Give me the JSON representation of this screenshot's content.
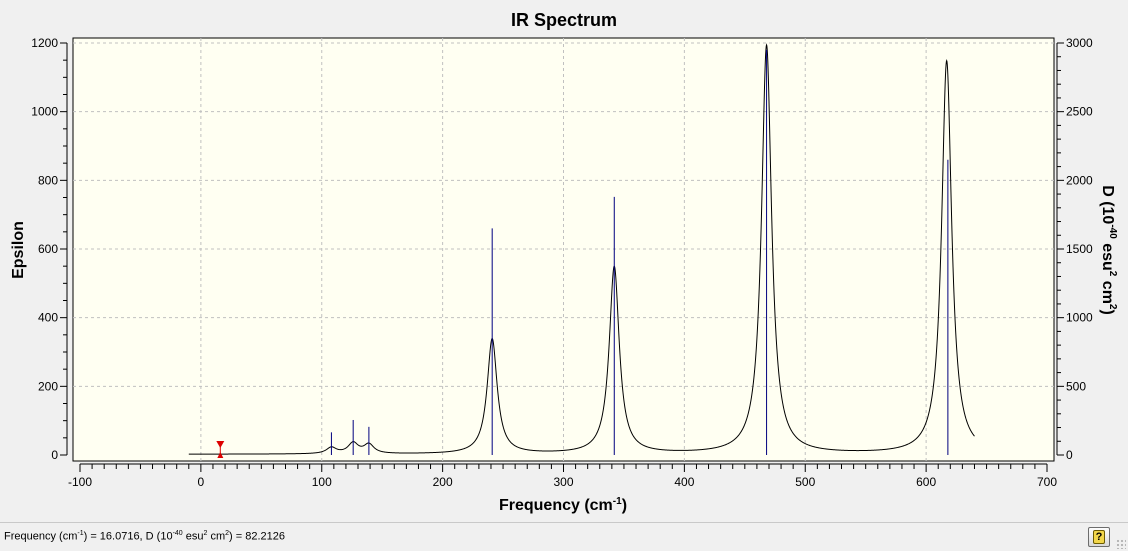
{
  "chart_data": {
    "type": "line",
    "title": "IR Spectrum",
    "xlabel": "Frequency (cm",
    "xlabel_sup": "-1",
    "xlabel_tail": ")",
    "ylabel": "Epsilon",
    "y2label_parts": [
      "D (10",
      "-40",
      " esu",
      "2",
      " cm",
      "2",
      ")"
    ],
    "xlim": [
      -100,
      700
    ],
    "ylim": [
      0,
      1200
    ],
    "y2lim": [
      0,
      3000
    ],
    "grid": true,
    "x_ticks": [
      -100,
      0,
      100,
      200,
      300,
      400,
      500,
      600,
      700
    ],
    "y_ticks": [
      0,
      200,
      400,
      600,
      800,
      1000,
      1200
    ],
    "y2_ticks": [
      0,
      500,
      1000,
      1500,
      2000,
      2500,
      3000
    ],
    "curve_range": [
      -10,
      640
    ],
    "curve_offset_epsilon": 2,
    "peaks": [
      {
        "freq": 108,
        "epsilon": 18,
        "hwhm": 5
      },
      {
        "freq": 126,
        "epsilon": 31,
        "hwhm": 5
      },
      {
        "freq": 139,
        "epsilon": 27,
        "hwhm": 5
      },
      {
        "freq": 241,
        "epsilon": 335,
        "hwhm": 5
      },
      {
        "freq": 342,
        "epsilon": 545,
        "hwhm": 5
      },
      {
        "freq": 468,
        "epsilon": 1190,
        "hwhm": 5
      },
      {
        "freq": 617,
        "epsilon": 1145,
        "hwhm": 5
      }
    ],
    "sticks": [
      {
        "freq": 108,
        "d": 165
      },
      {
        "freq": 126,
        "d": 255
      },
      {
        "freq": 139,
        "d": 205
      },
      {
        "freq": 241,
        "d": 1650
      },
      {
        "freq": 342,
        "d": 1880
      },
      {
        "freq": 468,
        "d": 2950
      },
      {
        "freq": 618,
        "d": 2150
      }
    ],
    "marker": {
      "freq": 16.0716
    },
    "colors": {
      "curve": "#000000",
      "sticks": "#00007f",
      "marker": "#dd0000",
      "grid": "#c0c0c0",
      "plot_bg": "#fffff2"
    }
  },
  "status": {
    "text_parts": [
      "Frequency (cm",
      "-1",
      ") = 16.0716, D (10",
      "-40",
      " esu",
      "2",
      " cm",
      "2",
      ") = 82.2126"
    ],
    "help_glyph": "?"
  }
}
